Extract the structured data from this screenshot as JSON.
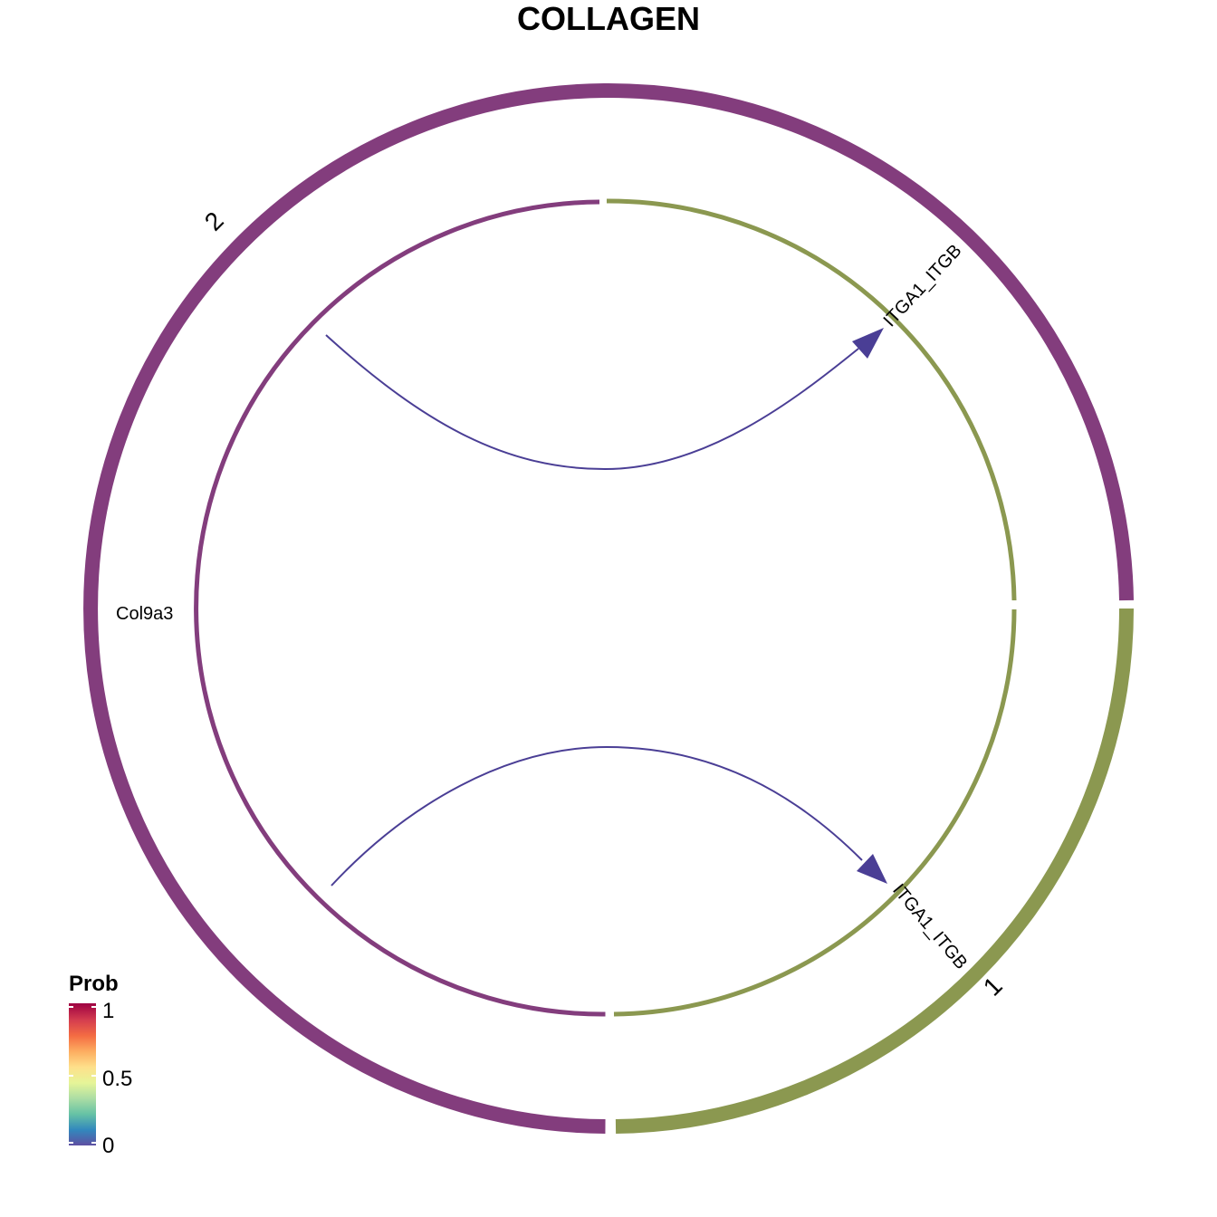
{
  "title": "COLLAGEN",
  "colors": {
    "group_2": "#833D7D",
    "group_1": "#8B9850",
    "edge": "#4A3E95",
    "gradient": [
      "#5E4FA2",
      "#3288BD",
      "#66C2A5",
      "#ABDDA4",
      "#E6F598",
      "#FEE08B",
      "#FDAE61",
      "#F46D43",
      "#D53E4F",
      "#9E0142"
    ]
  },
  "groups": [
    {
      "name": "2",
      "color_key": "group_2"
    },
    {
      "name": "1",
      "color_key": "group_1"
    }
  ],
  "genes": {
    "ligand": "Col9a3",
    "receptor_upper": "ITGA1_ITGB",
    "receptor_lower": "ITGA1_ITGB"
  },
  "links": [
    {
      "source": "Col9a3",
      "target": "ITGA1_ITGB",
      "prob": 0.0
    },
    {
      "source": "Col9a3",
      "target": "ITGA1_ITGB",
      "prob": 0.0
    }
  ],
  "legend": {
    "title": "Prob",
    "ticks": [
      "1",
      "0.5",
      "0"
    ]
  }
}
